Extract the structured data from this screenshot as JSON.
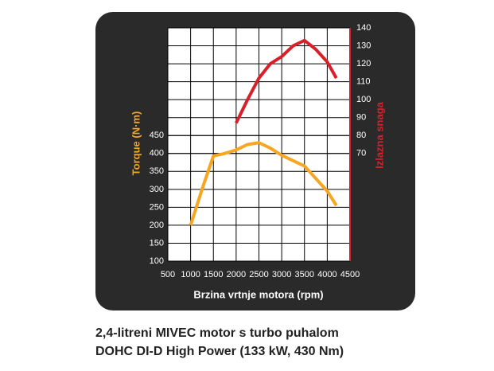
{
  "chart_data": {
    "type": "line",
    "x_label": "Brzina vrtnje motora (rpm)",
    "y_label": "Torque (N·m)",
    "y2_label": "Izlazna snaga",
    "xlim": [
      500,
      4500
    ],
    "xticks": [
      500,
      1000,
      1500,
      2000,
      2500,
      3000,
      3500,
      4000,
      4500
    ],
    "ylim": [
      100,
      750
    ],
    "yticks": [
      100,
      150,
      200,
      250,
      300,
      350,
      400,
      450
    ],
    "y2lim": [
      10,
      140
    ],
    "y2ticks": [
      70,
      80,
      90,
      100,
      110,
      120,
      130,
      140
    ],
    "grid": true,
    "series": [
      {
        "name": "Torque",
        "color": "#f5a623",
        "axis": "y",
        "x": [
          1000,
          1250,
          1500,
          1750,
          2000,
          2250,
          2500,
          2750,
          3000,
          3250,
          3500,
          3750,
          4000,
          4200
        ],
        "values": [
          200,
          300,
          393,
          400,
          410,
          425,
          430,
          415,
          395,
          380,
          365,
          330,
          295,
          255
        ]
      },
      {
        "name": "Izlazna snaga",
        "color": "#d9202a",
        "axis": "y2",
        "x": [
          2000,
          2250,
          2500,
          2750,
          3000,
          3250,
          3500,
          3750,
          4000,
          4200
        ],
        "values": [
          87,
          100,
          112,
          120,
          124,
          130,
          133,
          128,
          121,
          112
        ]
      }
    ]
  },
  "caption": [
    "2,4-litreni MIVEC motor s turbo puhalom",
    "DOHC DI-D High Power (133 kW, 430 Nm)"
  ]
}
